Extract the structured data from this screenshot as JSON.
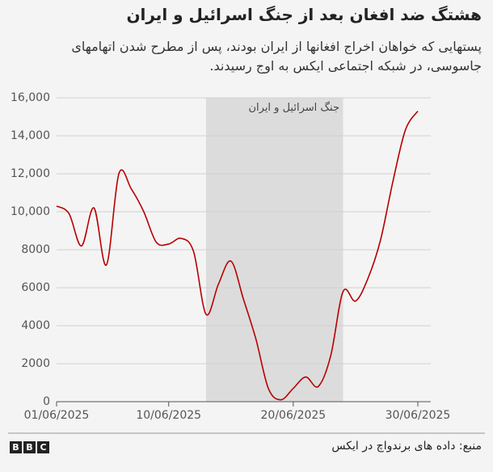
{
  "chart_data": {
    "type": "line",
    "title": "هشتگ ضد افغان بعد از جنگ اسرائیل و ایران",
    "subtitle": "پستهایی که خواهان اخراج افغانها از ایران بودند، پس از مطرح شدن اتهامهای جاسوسی، در شبکه اجتماعی ایکس به اوج رسیدند.",
    "x": [
      "2025-06-01",
      "2025-06-02",
      "2025-06-03",
      "2025-06-04",
      "2025-06-05",
      "2025-06-06",
      "2025-06-07",
      "2025-06-08",
      "2025-06-09",
      "2025-06-10",
      "2025-06-11",
      "2025-06-12",
      "2025-06-13",
      "2025-06-14",
      "2025-06-15",
      "2025-06-16",
      "2025-06-17",
      "2025-06-18",
      "2025-06-19",
      "2025-06-20",
      "2025-06-21",
      "2025-06-22",
      "2025-06-23",
      "2025-06-24",
      "2025-06-25",
      "2025-06-26",
      "2025-06-27",
      "2025-06-28",
      "2025-06-29",
      "2025-06-30"
    ],
    "series": [
      {
        "color": "#b80000",
        "values": [
          10300,
          9900,
          8200,
          10200,
          7200,
          12000,
          11200,
          10000,
          8400,
          8300,
          8600,
          7900,
          4600,
          6200,
          7400,
          5400,
          3300,
          700,
          100,
          700,
          1300,
          800,
          2400,
          5800,
          5300,
          6500,
          8500,
          11600,
          14300,
          15300
        ]
      }
    ],
    "xlim": [
      "2025-06-01",
      "2025-06-30"
    ],
    "xticks": [
      {
        "value": "2025-06-01",
        "label": "01/06/2025"
      },
      {
        "value": "2025-06-10",
        "label": "10/06/2025"
      },
      {
        "value": "2025-06-20",
        "label": "20/06/2025"
      },
      {
        "value": "2025-06-30",
        "label": "30/06/2025"
      }
    ],
    "ylim": [
      0,
      16000
    ],
    "yticks": [
      0,
      2000,
      4000,
      6000,
      8000,
      {
        "value": 10000,
        "label": "10,000"
      },
      {
        "value": 12000,
        "label": "12,000"
      },
      {
        "value": 14000,
        "label": "14,000"
      },
      {
        "value": 16000,
        "label": "16,000"
      }
    ],
    "grid": true,
    "highlight": {
      "start": "2025-06-13",
      "end": "2025-06-24",
      "label": "جنگ اسرائیل و ایران",
      "color": "#dcdcdc"
    },
    "source": "منبع: داده های برندواچ در ایکس",
    "logo": [
      "B",
      "B",
      "C"
    ]
  }
}
